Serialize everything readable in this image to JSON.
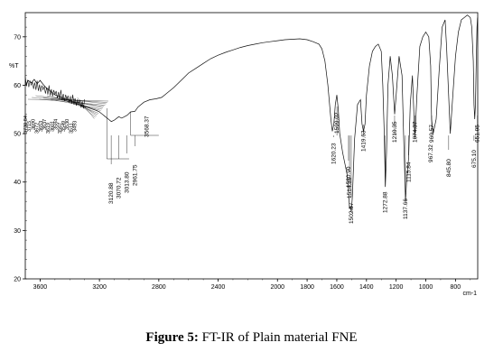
{
  "caption": {
    "label": "Figure 5:",
    "text": "FT-IR of Plain material FNE"
  },
  "chart_data": {
    "type": "line",
    "title": "",
    "xlabel": "cm-1",
    "ylabel": "%T",
    "xlim": [
      3700,
      650
    ],
    "ylim": [
      20,
      75
    ],
    "x_ticks": [
      3600,
      3200,
      2800,
      2400,
      2000,
      1600,
      1200,
      800
    ],
    "x_tick_labels": [
      "3600",
      "3200",
      "2800",
      "2400",
      "2000",
      "1800",
      "1600",
      "1400",
      "1200",
      "1000",
      "800"
    ],
    "x_tick_values": [
      3600,
      3200,
      2800,
      2400,
      2000,
      1800,
      1600,
      1400,
      1200,
      1000,
      800
    ],
    "y_ticks": [
      20,
      30,
      40,
      50,
      60,
      70
    ],
    "grid": false,
    "series": [
      {
        "x": [
          3700,
          3680,
          3660,
          3640,
          3620,
          3600,
          3580,
          3560,
          3540,
          3520,
          3500,
          3480,
          3460,
          3440,
          3420,
          3400,
          3380,
          3360,
          3340,
          3320,
          3300,
          3280,
          3260,
          3240,
          3220,
          3200,
          3180,
          3160,
          3140,
          3120,
          3100,
          3070,
          3050,
          3013,
          2990,
          2961,
          2940,
          2900,
          2860,
          2820,
          2780,
          2740,
          2700,
          2650,
          2600,
          2550,
          2500,
          2450,
          2400,
          2350,
          2300,
          2250,
          2200,
          2150,
          2100,
          2050,
          2000,
          1950,
          1900,
          1850,
          1800,
          1760,
          1720,
          1700,
          1680,
          1660,
          1640,
          1630,
          1620,
          1610,
          1600,
          1590,
          1580,
          1560,
          1540,
          1530,
          1521,
          1514,
          1508,
          1502,
          1495,
          1480,
          1460,
          1440,
          1430,
          1420,
          1410,
          1400,
          1380,
          1360,
          1340,
          1320,
          1300,
          1290,
          1280,
          1273,
          1265,
          1255,
          1240,
          1225,
          1210,
          1200,
          1180,
          1160,
          1150,
          1140,
          1137,
          1130,
          1116,
          1105,
          1090,
          1074,
          1060,
          1040,
          1020,
          1000,
          980,
          967,
          961,
          950,
          930,
          910,
          890,
          870,
          860,
          846,
          835,
          820,
          800,
          780,
          760,
          740,
          720,
          700,
          690,
          680,
          675,
          670,
          665,
          660,
          655,
          651
        ],
        "values": [
          60,
          61,
          60.5,
          61.2,
          60.3,
          61,
          60.2,
          59.5,
          59,
          58.5,
          58,
          57.8,
          57.5,
          57.2,
          57,
          56.8,
          56.5,
          56.3,
          56,
          55.8,
          55.6,
          55.4,
          55.2,
          55,
          54.8,
          54.5,
          54,
          53.5,
          53,
          52.5,
          52.8,
          53.5,
          53.2,
          53.8,
          54.5,
          54.6,
          55.5,
          56.5,
          57,
          57.2,
          57.5,
          58.5,
          59.5,
          61,
          62.5,
          63.5,
          64.5,
          65.5,
          66.2,
          66.8,
          67.3,
          67.8,
          68.2,
          68.5,
          68.8,
          69,
          69.2,
          69.4,
          69.5,
          69.6,
          69.4,
          69,
          68.5,
          67.5,
          65,
          60,
          53,
          50.5,
          52,
          56,
          58,
          55,
          50,
          46,
          43,
          41.5,
          38.5,
          34.5,
          35,
          33.8,
          37,
          49,
          56,
          57,
          52,
          50.5,
          52,
          58,
          64,
          67,
          68,
          68.5,
          67,
          60,
          50,
          39,
          46,
          60,
          66,
          62,
          54,
          58,
          66,
          62,
          50,
          40,
          36,
          40,
          45,
          56,
          62,
          49,
          58,
          68,
          70,
          71,
          70,
          64,
          53,
          50,
          53,
          63,
          72,
          73.5,
          68,
          58,
          50,
          57,
          66,
          71,
          73.5,
          74,
          74.5,
          74,
          72,
          65,
          56,
          53,
          56,
          65,
          72,
          74
        ]
      }
    ],
    "y_tick_labels": [
      "20",
      "30",
      "40",
      "50",
      "60",
      "70"
    ],
    "peak_labels": [
      "1620.23",
      "1599.02",
      "1520.90",
      "1514.15",
      "1502.57",
      "1419.63",
      "1272.88",
      "1210.35",
      "1137.66",
      "1115.84",
      "1074.37",
      "967.32",
      "960.57",
      "845.80",
      "675.10",
      "651.95",
      "3120.88",
      "3070.72",
      "3013.80",
      "2961.75",
      "3568.37"
    ],
    "clutter_labels": [
      "3730.84",
      "3715",
      "3690",
      "3672",
      "3653",
      "3637",
      "3619",
      "3601",
      "3584",
      "3567",
      "3549",
      "3530",
      "3511",
      "3493"
    ]
  }
}
